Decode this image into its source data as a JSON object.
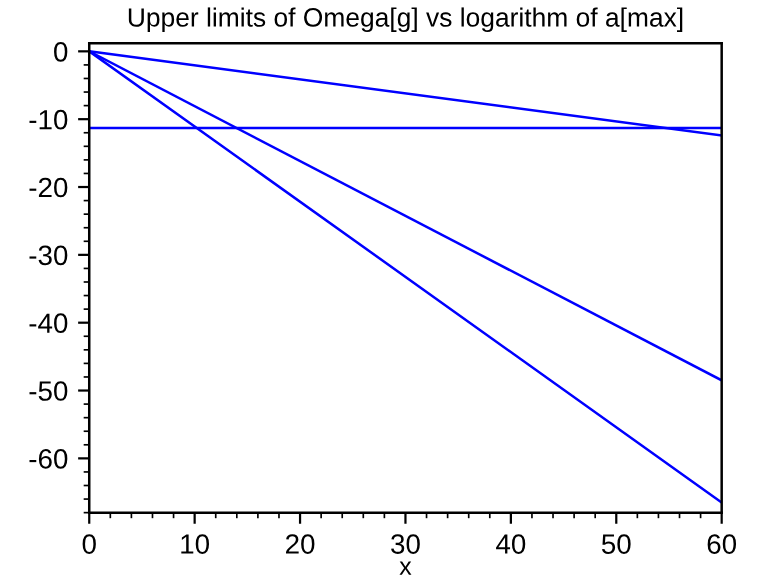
{
  "chart_data": {
    "type": "line",
    "title": "Upper limits of Omega[g] vs logarithm of a[max]",
    "xlabel": "x",
    "x": [
      0,
      60
    ],
    "series": [
      {
        "color": "#0000ff",
        "values": [
          0,
          -12.4
        ]
      },
      {
        "color": "#0000ff",
        "values": [
          0,
          -48.5
        ]
      },
      {
        "color": "#0000ff",
        "values": [
          0,
          -66.5
        ]
      }
    ],
    "ref_lines": [
      {
        "axis": "y",
        "value": -11.3,
        "color": "#0000ff"
      }
    ],
    "xlim": [
      0,
      60
    ],
    "xticks": [
      0,
      10,
      20,
      30,
      40,
      50,
      60
    ],
    "ylim": [
      -68,
      1.2
    ],
    "yticks": [
      0,
      -10,
      -20,
      -30,
      -40,
      -50,
      -60
    ],
    "grid": false,
    "legend": false
  }
}
